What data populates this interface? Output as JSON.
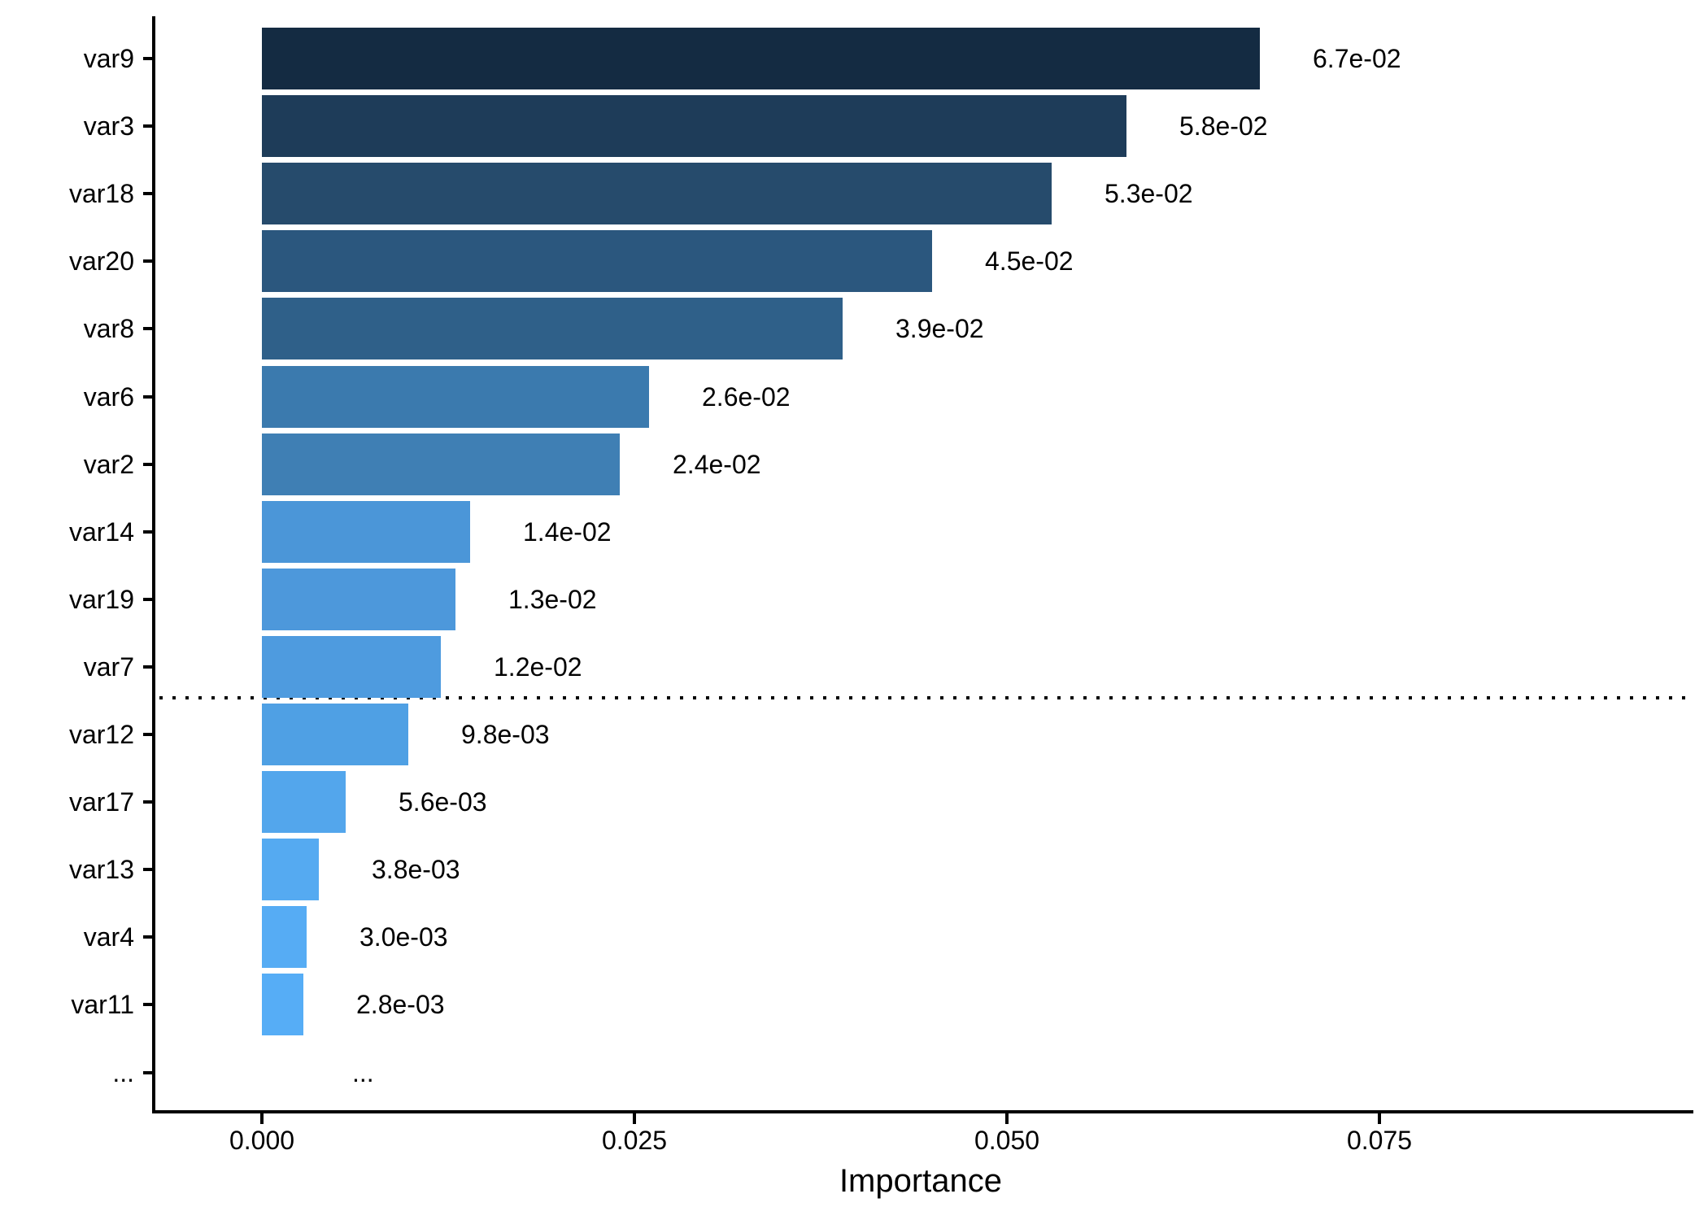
{
  "chart_data": {
    "type": "bar",
    "orientation": "horizontal",
    "title": "",
    "xlabel": "Importance",
    "ylabel": "",
    "categories": [
      "var9",
      "var3",
      "var18",
      "var20",
      "var8",
      "var6",
      "var2",
      "var14",
      "var19",
      "var7",
      "var12",
      "var17",
      "var13",
      "var4",
      "var11",
      "..."
    ],
    "values": [
      0.067,
      0.058,
      0.053,
      0.045,
      0.039,
      0.026,
      0.024,
      0.014,
      0.013,
      0.012,
      0.0098,
      0.0056,
      0.0038,
      0.003,
      0.0028,
      null
    ],
    "value_labels": [
      "6.7e-02",
      "5.8e-02",
      "5.3e-02",
      "4.5e-02",
      "3.9e-02",
      "2.6e-02",
      "2.4e-02",
      "1.4e-02",
      "1.3e-02",
      "1.2e-02",
      "9.8e-03",
      "5.6e-03",
      "3.8e-03",
      "3.0e-03",
      "2.8e-03",
      "..."
    ],
    "bar_colors": [
      "#142B42",
      "#1E3C59",
      "#264B6C",
      "#2B577E",
      "#2F6089",
      "#3B7AAE",
      "#3F7FB4",
      "#4B96D8",
      "#4D98DB",
      "#4E9BDF",
      "#4FA0E4",
      "#53A6EC",
      "#55AAF1",
      "#56ACF4",
      "#56ADF6",
      null
    ],
    "x_axis": {
      "title": "Importance",
      "tick_labels": [
        "0.000",
        "0.025",
        "0.050",
        "0.075"
      ],
      "tick_values": [
        0.0,
        0.025,
        0.05,
        0.075
      ],
      "range_approx": [
        -0.0073,
        0.096
      ]
    },
    "cutoff_line": {
      "style": "dotted",
      "color": "#000000",
      "between_categories": [
        "var7",
        "var12"
      ]
    },
    "legend": "none",
    "grid": "off",
    "colors": {
      "background": "#FFFFFF",
      "axis": "#000000",
      "text": "#000000",
      "gradient_low": "#132B43",
      "gradient_high": "#56B1F7"
    }
  }
}
